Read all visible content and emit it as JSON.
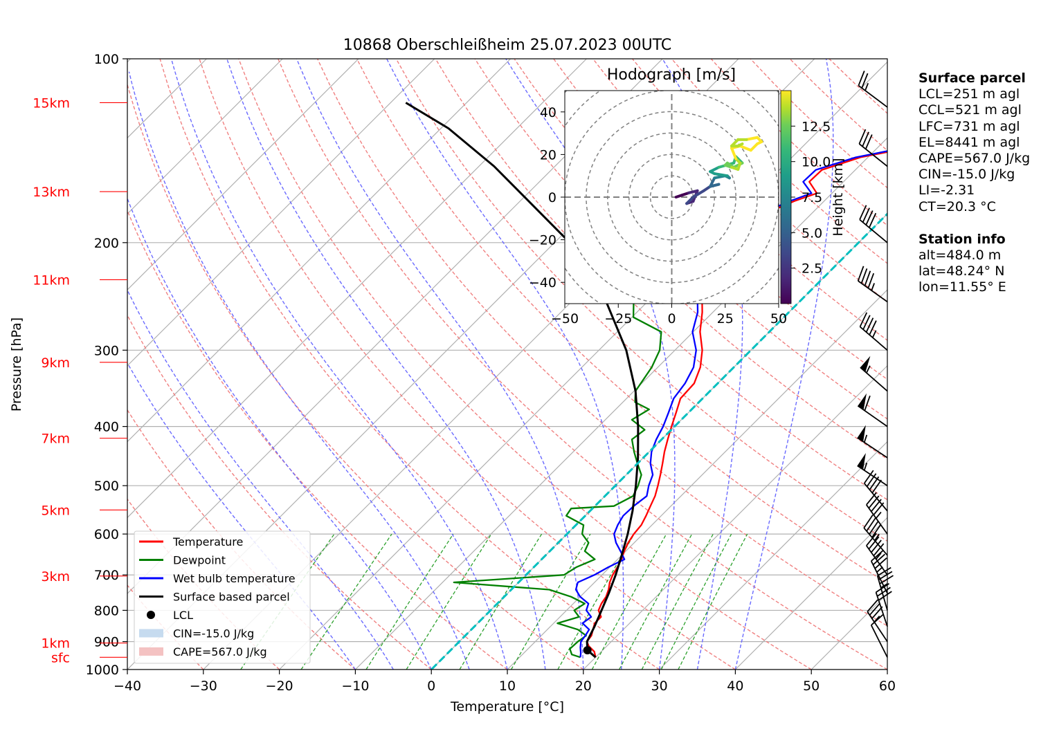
{
  "chart_data": {
    "type": "line",
    "title": "10868 Oberschleißheim 25.07.2023 00UTC",
    "xlabel": "Temperature [°C]",
    "ylabel": "Pressure [hPa]",
    "xlim": [
      -40,
      60
    ],
    "ylim": [
      1000,
      100
    ],
    "y_scale": "log",
    "skew": "45°",
    "grid": true,
    "x_ticks": [
      -40,
      -30,
      -20,
      -10,
      0,
      10,
      20,
      30,
      40,
      50,
      60
    ],
    "y_ticks": [
      1000,
      900,
      800,
      700,
      600,
      500,
      400,
      300,
      200,
      100
    ],
    "height_labels": [
      {
        "label": "sfc",
        "p": 955
      },
      {
        "label": "1km",
        "p": 905
      },
      {
        "label": "3km",
        "p": 703
      },
      {
        "label": "5km",
        "p": 548
      },
      {
        "label": "7km",
        "p": 418
      },
      {
        "label": "9km",
        "p": 314
      },
      {
        "label": "11km",
        "p": 230
      },
      {
        "label": "13km",
        "p": 165
      },
      {
        "label": "15km",
        "p": 118
      }
    ],
    "series": [
      {
        "name": "Temperature",
        "color": "#ff0000",
        "points": [
          [
            20.0,
            955
          ],
          [
            19.1,
            935
          ],
          [
            17.6,
            915
          ],
          [
            16.8,
            900
          ],
          [
            16.6,
            880
          ],
          [
            16.0,
            860
          ],
          [
            15.4,
            840
          ],
          [
            15.4,
            820
          ],
          [
            14.2,
            800
          ],
          [
            13.7,
            780
          ],
          [
            13.4,
            760
          ],
          [
            12.8,
            740
          ],
          [
            12.0,
            720
          ],
          [
            11.4,
            700
          ],
          [
            11.0,
            680
          ],
          [
            10.5,
            660
          ],
          [
            9.8,
            640
          ],
          [
            9.2,
            620
          ],
          [
            8.8,
            600
          ],
          [
            8.6,
            580
          ],
          [
            8.0,
            560
          ],
          [
            7.3,
            540
          ],
          [
            6.6,
            520
          ],
          [
            5.6,
            500
          ],
          [
            4.5,
            480
          ],
          [
            3.3,
            460
          ],
          [
            2.0,
            440
          ],
          [
            0.8,
            420
          ],
          [
            -0.4,
            400
          ],
          [
            -1.6,
            380
          ],
          [
            -2.9,
            360
          ],
          [
            -3.1,
            340
          ],
          [
            -4.4,
            320
          ],
          [
            -6.4,
            300
          ],
          [
            -9.1,
            280
          ],
          [
            -11.4,
            260
          ],
          [
            -13.5,
            245
          ],
          [
            -16.3,
            230
          ],
          [
            -18.7,
            220
          ],
          [
            -20.2,
            212
          ],
          [
            -20.5,
            205
          ],
          [
            -19.1,
            200
          ],
          [
            -19.4,
            193
          ],
          [
            -18.3,
            188
          ],
          [
            -18.0,
            182
          ],
          [
            -15.8,
            178
          ],
          [
            -13.9,
            171
          ],
          [
            -12.0,
            166
          ],
          [
            -14.5,
            159
          ],
          [
            -14.4,
            152
          ],
          [
            -11.0,
            145
          ],
          [
            -6.0,
            140
          ],
          [
            -5.0,
            135
          ],
          [
            -2.5,
            130
          ],
          [
            -2.0,
            125
          ],
          [
            -2.2,
            120
          ],
          [
            -3.6,
            116
          ]
        ]
      },
      {
        "name": "Dewpoint",
        "color": "#008000",
        "points": [
          [
            18.0,
            955
          ],
          [
            16.5,
            945
          ],
          [
            15.5,
            925
          ],
          [
            15.6,
            900
          ],
          [
            15.9,
            880
          ],
          [
            14.0,
            860
          ],
          [
            10.5,
            840
          ],
          [
            12.5,
            820
          ],
          [
            11.0,
            800
          ],
          [
            11.5,
            780
          ],
          [
            8.8,
            760
          ],
          [
            5.0,
            740
          ],
          [
            -8.5,
            720
          ],
          [
            5.0,
            700
          ],
          [
            5.6,
            680
          ],
          [
            7.0,
            660
          ],
          [
            4.6,
            640
          ],
          [
            4.0,
            620
          ],
          [
            2.0,
            600
          ],
          [
            1.0,
            580
          ],
          [
            -2.5,
            560
          ],
          [
            -2.8,
            545
          ],
          [
            2.5,
            540
          ],
          [
            3.7,
            520
          ],
          [
            3.0,
            500
          ],
          [
            2.0,
            480
          ],
          [
            0.0,
            460
          ],
          [
            -2.0,
            440
          ],
          [
            -3.9,
            420
          ],
          [
            -3.5,
            405
          ],
          [
            -6.5,
            390
          ],
          [
            -5.6,
            375
          ],
          [
            -8.4,
            365
          ],
          [
            -9.8,
            350
          ],
          [
            -10.8,
            320
          ],
          [
            -12.0,
            300
          ],
          [
            -14.2,
            280
          ],
          [
            -19.8,
            265
          ],
          [
            -21.8,
            250
          ],
          [
            -21.2,
            240
          ],
          [
            -21.6,
            228
          ],
          [
            -20.8,
            218
          ],
          [
            -24.5,
            210
          ],
          [
            -27.6,
            200
          ],
          [
            -32.6,
            188
          ],
          [
            -33.4,
            182
          ],
          [
            -35.3,
            175
          ],
          [
            -35.9,
            165
          ],
          [
            -33.8,
            155
          ],
          [
            -36.5,
            148
          ],
          [
            -38.1,
            140
          ],
          [
            -39.5,
            130
          ],
          [
            -42.5,
            122
          ],
          [
            -42.9,
            116
          ]
        ]
      },
      {
        "name": "Wet bulb temperature",
        "color": "#0000ff",
        "points": [
          [
            18.0,
            955
          ],
          [
            17.5,
            940
          ],
          [
            16.7,
            920
          ],
          [
            16.0,
            900
          ],
          [
            15.8,
            880
          ],
          [
            15.5,
            860
          ],
          [
            13.8,
            840
          ],
          [
            14.1,
            820
          ],
          [
            12.6,
            800
          ],
          [
            12.0,
            780
          ],
          [
            10.0,
            760
          ],
          [
            8.5,
            740
          ],
          [
            7.8,
            720
          ],
          [
            9.0,
            700
          ],
          [
            9.8,
            680
          ],
          [
            10.9,
            660
          ],
          [
            9.3,
            640
          ],
          [
            7.6,
            620
          ],
          [
            6.2,
            600
          ],
          [
            5.5,
            580
          ],
          [
            5.0,
            560
          ],
          [
            5.1,
            540
          ],
          [
            5.5,
            520
          ],
          [
            4.4,
            500
          ],
          [
            3.5,
            480
          ],
          [
            1.7,
            460
          ],
          [
            0.3,
            440
          ],
          [
            -0.7,
            420
          ],
          [
            -1.5,
            400
          ],
          [
            -2.6,
            380
          ],
          [
            -3.8,
            360
          ],
          [
            -4.3,
            340
          ],
          [
            -5.3,
            320
          ],
          [
            -7.2,
            300
          ],
          [
            -10.1,
            280
          ],
          [
            -12.0,
            260
          ],
          [
            -14.1,
            245
          ],
          [
            -16.8,
            230
          ],
          [
            -19.4,
            220
          ],
          [
            -20.9,
            212
          ],
          [
            -21.0,
            205
          ],
          [
            -19.6,
            200
          ],
          [
            -20.1,
            193
          ],
          [
            -18.8,
            188
          ],
          [
            -18.4,
            182
          ],
          [
            -16.3,
            178
          ],
          [
            -14.5,
            171
          ],
          [
            -12.7,
            166
          ],
          [
            -15.3,
            159
          ],
          [
            -15.2,
            152
          ],
          [
            -11.6,
            145
          ],
          [
            -6.6,
            140
          ],
          [
            -5.5,
            135
          ],
          [
            -3.1,
            130
          ],
          [
            -2.5,
            125
          ],
          [
            -2.7,
            120
          ],
          [
            -4.3,
            116
          ]
        ]
      },
      {
        "name": "Surface based parcel",
        "color": "#000000",
        "points": [
          [
            20.0,
            955
          ],
          [
            18.0,
            930
          ],
          [
            16.8,
            900
          ],
          [
            15.8,
            850
          ],
          [
            14.6,
            800
          ],
          [
            13.3,
            750
          ],
          [
            11.8,
            700
          ],
          [
            10.0,
            650
          ],
          [
            8.0,
            600
          ],
          [
            5.6,
            550
          ],
          [
            2.7,
            500
          ],
          [
            -0.7,
            450
          ],
          [
            -4.8,
            400
          ],
          [
            -9.8,
            350
          ],
          [
            -16.4,
            300
          ],
          [
            -25.4,
            250
          ],
          [
            -38.0,
            200
          ],
          [
            -58.0,
            150
          ],
          [
            -69.0,
            130
          ],
          [
            -78.0,
            118
          ]
        ]
      }
    ],
    "lcl": {
      "name": "LCL",
      "t": 18.0,
      "p": 930
    },
    "cin_label": "CIN=-15.0 J/kg",
    "cape_label": "CAPE=567.0 J/kg",
    "winds": [
      {
        "p": 955,
        "u": -5,
        "v": 10
      },
      {
        "p": 900,
        "u": -20,
        "v": 30
      },
      {
        "p": 850,
        "u": -10,
        "v": 30
      },
      {
        "p": 800,
        "u": -10,
        "v": 35
      },
      {
        "p": 750,
        "u": -15,
        "v": 30
      },
      {
        "p": 700,
        "u": -25,
        "v": 35
      },
      {
        "p": 650,
        "u": -30,
        "v": 35
      },
      {
        "p": 600,
        "u": -25,
        "v": 35
      },
      {
        "p": 550,
        "u": -25,
        "v": 30
      },
      {
        "p": 500,
        "u": -45,
        "v": 30
      },
      {
        "p": 450,
        "u": -45,
        "v": 30
      },
      {
        "p": 400,
        "u": -50,
        "v": 35
      },
      {
        "p": 350,
        "u": -40,
        "v": 35
      },
      {
        "p": 300,
        "u": -35,
        "v": 30
      },
      {
        "p": 250,
        "u": -35,
        "v": 25
      },
      {
        "p": 200,
        "u": -30,
        "v": 25
      },
      {
        "p": 150,
        "u": -25,
        "v": 20
      },
      {
        "p": 120,
        "u": -20,
        "v": 15
      }
    ],
    "hodograph": {
      "title": "Hodograph [m/s]",
      "xlim": [
        -50,
        50
      ],
      "ylim": [
        -50,
        50
      ],
      "ticks": [
        -50,
        -25,
        0,
        25,
        50
      ],
      "yticks": [
        -40,
        -20,
        0,
        20,
        40
      ],
      "rings": [
        10,
        20,
        30,
        40,
        50,
        60,
        70
      ],
      "colorbar_label": "Height [km]",
      "colorbar_ticks": [
        "2.5",
        "5.0",
        "7.5",
        "10.0",
        "12.5"
      ],
      "colorbar_range": [
        0,
        15
      ],
      "colormap": [
        "#440154",
        "#482878",
        "#3e4989",
        "#31688e",
        "#26828e",
        "#1f9e89",
        "#35b779",
        "#6ece58",
        "#b5de2b",
        "#fde725"
      ],
      "points": [
        [
          2,
          0,
          0.5
        ],
        [
          5,
          1,
          1.0
        ],
        [
          8,
          2,
          1.5
        ],
        [
          12,
          3,
          2.0
        ],
        [
          10,
          -2,
          2.5
        ],
        [
          7,
          -3,
          3.0
        ],
        [
          10,
          0,
          3.5
        ],
        [
          15,
          3,
          4.0
        ],
        [
          18,
          5,
          4.5
        ],
        [
          22,
          6,
          5.0
        ],
        [
          18,
          5,
          5.5
        ],
        [
          20,
          9,
          6.0
        ],
        [
          25,
          10,
          6.5
        ],
        [
          27,
          9,
          7.0
        ],
        [
          26,
          10,
          7.5
        ],
        [
          20,
          11,
          8.0
        ],
        [
          18,
          12,
          8.5
        ],
        [
          22,
          14,
          9.0
        ],
        [
          29,
          16,
          9.5
        ],
        [
          30,
          19,
          9.8
        ],
        [
          31,
          18,
          10.2
        ],
        [
          33,
          16,
          10.5
        ],
        [
          29,
          14,
          10.8
        ],
        [
          26,
          16,
          11.0
        ],
        [
          25,
          15,
          11.5
        ],
        [
          28,
          14,
          12.0
        ],
        [
          31,
          13,
          12.5
        ],
        [
          32,
          16,
          13.0
        ],
        [
          30,
          18,
          13.5
        ],
        [
          28,
          23,
          14.0
        ],
        [
          32,
          24,
          14.5
        ],
        [
          37,
          22,
          15.0
        ],
        [
          40,
          25,
          14.5
        ],
        [
          42,
          26,
          14.0
        ],
        [
          40,
          28,
          13.5
        ],
        [
          35,
          27,
          13.0
        ],
        [
          31,
          27,
          12.5
        ],
        [
          28,
          24,
          12.5
        ],
        [
          31,
          24,
          13.0
        ],
        [
          33,
          25,
          13.5
        ]
      ]
    }
  },
  "surface_parcel": {
    "title": "Surface parcel",
    "lines": [
      "LCL=251 m agl",
      "CCL=521 m agl",
      "LFC=731 m agl",
      "EL=8441 m agl",
      "CAPE=567.0 J/kg",
      "CIN=-15.0 J/kg",
      "LI=-2.31",
      "CT=20.3 °C"
    ]
  },
  "station_info": {
    "title": "Station info",
    "lines": [
      "alt=484.0 m",
      "lat=48.24° N",
      "lon=11.55° E"
    ]
  },
  "colors": {
    "temperature": "#ff0000",
    "dewpoint": "#008000",
    "wetbulb": "#0000ff",
    "parcel": "#000000",
    "dry_adiabat": "#f08080",
    "moist_adiabat": "#6a6aff",
    "mixing_ratio": "#2ca02c",
    "isotherm_zero": "#00bfbf",
    "cape_fill": "#f4c2c2",
    "cin_fill": "#c6dbef",
    "height_label": "#ff0000"
  }
}
